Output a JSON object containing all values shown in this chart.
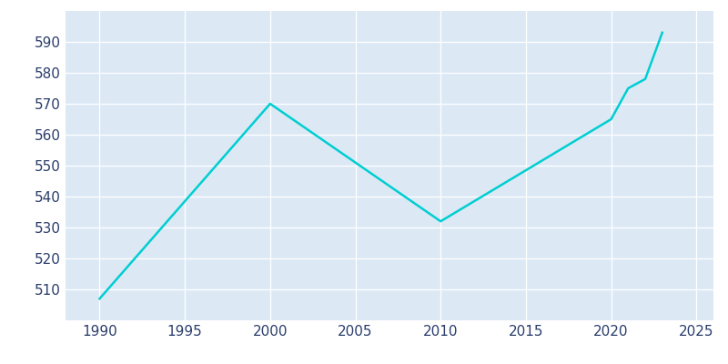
{
  "years": [
    1990,
    2000,
    2010,
    2020,
    2021,
    2022,
    2023
  ],
  "population": [
    507,
    570,
    532,
    565,
    575,
    578,
    593
  ],
  "line_color": "#00CED1",
  "plot_bg_color": "#dce9f5",
  "fig_bg_color": "#ffffff",
  "grid_color": "#c8d8e8",
  "xlim": [
    1988,
    2026
  ],
  "ylim": [
    500,
    600
  ],
  "xticks": [
    1990,
    1995,
    2000,
    2005,
    2010,
    2015,
    2020,
    2025
  ],
  "yticks": [
    510,
    520,
    530,
    540,
    550,
    560,
    570,
    580,
    590
  ],
  "tick_label_color": "#2b3d6b",
  "tick_fontsize": 11,
  "linewidth": 1.8
}
